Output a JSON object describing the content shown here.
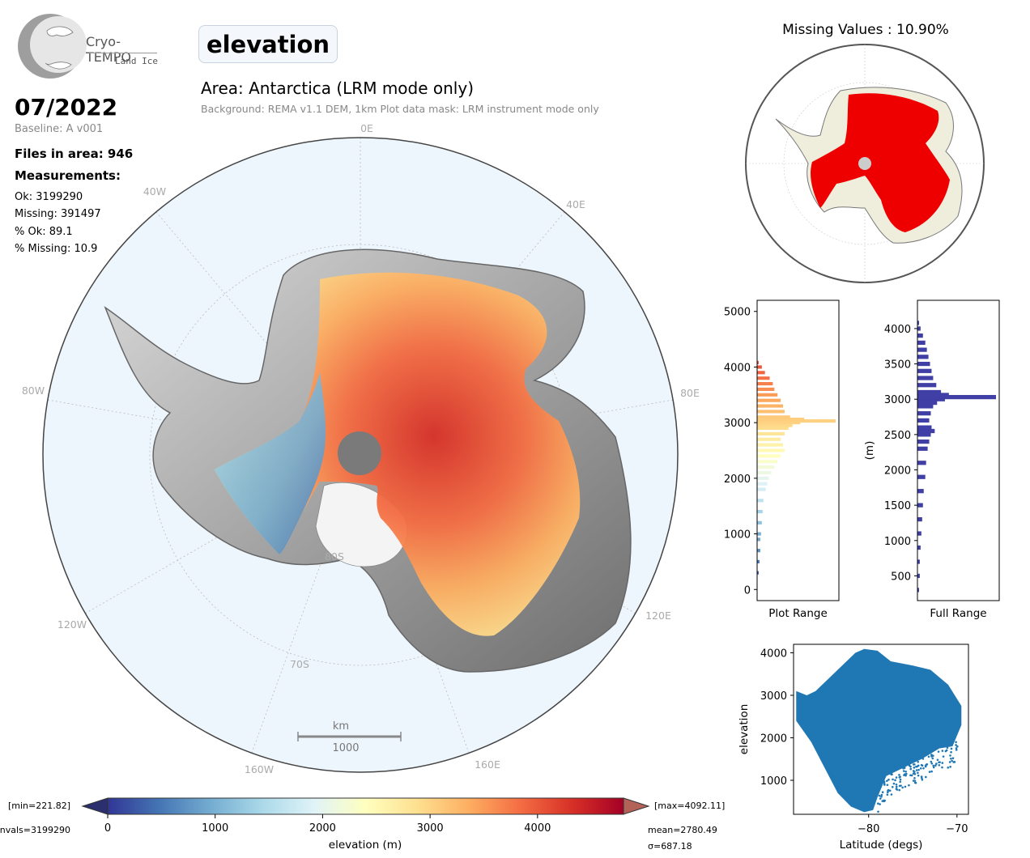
{
  "header": {
    "logo_name": "Cryo-TEMPO",
    "logo_sub": "Land Ice",
    "title": "elevation",
    "date": "07/2022",
    "baseline": "Baseline: A v001",
    "area": "Area: Antarctica (LRM mode only)",
    "background_note": "Background: REMA v1.1 DEM, 1km   Plot data mask: LRM instrument mode only"
  },
  "stats": {
    "files_in_area": "Files in area: 946",
    "measurements_label": "Measurements:",
    "ok": "Ok: 3199290",
    "missing": "Missing: 391497",
    "pct_ok": "% Ok: 89.1",
    "pct_missing": "% Missing: 10.9"
  },
  "map": {
    "lon_labels": [
      "0E",
      "40E",
      "80E",
      "120E",
      "160E",
      "160W",
      "120W",
      "80W",
      "40W"
    ],
    "lat_labels": [
      "80S",
      "70S"
    ],
    "scalebar_unit": "km",
    "scalebar_value": "1000"
  },
  "missing_map": {
    "title": "Missing Values : 10.90%"
  },
  "colorbar": {
    "label": "elevation (m)",
    "ticks": [
      "0",
      "1000",
      "2000",
      "3000",
      "4000"
    ],
    "min_label": "[min=221.82]",
    "max_label": "[max=4092.11]",
    "nvals_label": "nvals=3199290",
    "mean_label": "mean=2780.49",
    "sigma_label": "σ=687.18",
    "colormap": [
      "#313695",
      "#4575b4",
      "#74add1",
      "#abd9e9",
      "#e0f3f8",
      "#ffffbf",
      "#fee090",
      "#fdae61",
      "#f46d43",
      "#d73027",
      "#a50026"
    ]
  },
  "chart_data": [
    {
      "type": "bar",
      "orientation": "horizontal",
      "xlabel": "Plot Range",
      "ylabel": "",
      "ylim": [
        -200,
        5200
      ],
      "yticks": [
        0,
        1000,
        2000,
        3000,
        4000,
        5000
      ],
      "colormap": "RdYlBu_r",
      "bins": [
        [
          300,
          0.02
        ],
        [
          500,
          0.03
        ],
        [
          700,
          0.04
        ],
        [
          900,
          0.04
        ],
        [
          1000,
          0.05
        ],
        [
          1200,
          0.06
        ],
        [
          1400,
          0.07
        ],
        [
          1600,
          0.08
        ],
        [
          1800,
          0.11
        ],
        [
          1900,
          0.13
        ],
        [
          2000,
          0.15
        ],
        [
          2100,
          0.18
        ],
        [
          2200,
          0.22
        ],
        [
          2300,
          0.26
        ],
        [
          2400,
          0.3
        ],
        [
          2500,
          0.35
        ],
        [
          2600,
          0.33
        ],
        [
          2700,
          0.3
        ],
        [
          2800,
          0.35
        ],
        [
          2900,
          0.4
        ],
        [
          2950,
          0.45
        ],
        [
          3000,
          0.55
        ],
        [
          3030,
          1.0
        ],
        [
          3060,
          0.6
        ],
        [
          3100,
          0.42
        ],
        [
          3200,
          0.35
        ],
        [
          3300,
          0.33
        ],
        [
          3400,
          0.3
        ],
        [
          3500,
          0.26
        ],
        [
          3600,
          0.22
        ],
        [
          3700,
          0.2
        ],
        [
          3800,
          0.16
        ],
        [
          3900,
          0.1
        ],
        [
          4000,
          0.06
        ],
        [
          4080,
          0.02
        ]
      ]
    },
    {
      "type": "bar",
      "orientation": "horizontal",
      "xlabel": "Full Range",
      "ylabel": "(m)",
      "ylim": [
        150,
        4400
      ],
      "yticks": [
        500,
        1000,
        1500,
        2000,
        2500,
        3000,
        3500,
        4000
      ],
      "color": "#3f3fa6",
      "bins": [
        [
          300,
          0.02
        ],
        [
          500,
          0.03
        ],
        [
          700,
          0.03
        ],
        [
          900,
          0.04
        ],
        [
          1100,
          0.05
        ],
        [
          1300,
          0.06
        ],
        [
          1500,
          0.07
        ],
        [
          1700,
          0.08
        ],
        [
          1900,
          0.1
        ],
        [
          2100,
          0.11
        ],
        [
          2300,
          0.13
        ],
        [
          2400,
          0.15
        ],
        [
          2500,
          0.17
        ],
        [
          2550,
          0.22
        ],
        [
          2600,
          0.18
        ],
        [
          2700,
          0.15
        ],
        [
          2800,
          0.17
        ],
        [
          2900,
          0.2
        ],
        [
          2950,
          0.25
        ],
        [
          3000,
          0.35
        ],
        [
          3030,
          1.0
        ],
        [
          3060,
          0.4
        ],
        [
          3100,
          0.3
        ],
        [
          3200,
          0.24
        ],
        [
          3300,
          0.2
        ],
        [
          3400,
          0.18
        ],
        [
          3500,
          0.16
        ],
        [
          3600,
          0.14
        ],
        [
          3700,
          0.12
        ],
        [
          3800,
          0.1
        ],
        [
          3900,
          0.07
        ],
        [
          4000,
          0.04
        ],
        [
          4080,
          0.02
        ]
      ]
    },
    {
      "type": "scatter",
      "xlabel": "Latitude (degs)",
      "ylabel": "elevation",
      "xlim": [
        -88.5,
        -68.7
      ],
      "ylim": [
        200,
        4200
      ],
      "xticks": [
        -80,
        -70
      ],
      "yticks": [
        1000,
        2000,
        3000,
        4000
      ],
      "color": "#1f77b4",
      "upper_envelope": [
        [
          -88.2,
          3100
        ],
        [
          -87,
          3000
        ],
        [
          -86,
          3100
        ],
        [
          -84.5,
          3400
        ],
        [
          -83,
          3700
        ],
        [
          -81.5,
          4000
        ],
        [
          -80.5,
          4090
        ],
        [
          -79,
          4050
        ],
        [
          -77.5,
          3800
        ],
        [
          -75,
          3700
        ],
        [
          -73,
          3600
        ],
        [
          -71,
          3250
        ],
        [
          -69.5,
          2750
        ]
      ],
      "lower_envelope": [
        [
          -88.2,
          2400
        ],
        [
          -86.5,
          1900
        ],
        [
          -85,
          1300
        ],
        [
          -83.5,
          700
        ],
        [
          -82,
          380
        ],
        [
          -80.5,
          250
        ],
        [
          -79.5,
          300
        ],
        [
          -79,
          600
        ],
        [
          -78,
          1100
        ],
        [
          -76,
          1300
        ],
        [
          -74,
          1500
        ],
        [
          -72,
          1750
        ],
        [
          -70.5,
          1800
        ],
        [
          -69.5,
          2300
        ]
      ]
    }
  ]
}
